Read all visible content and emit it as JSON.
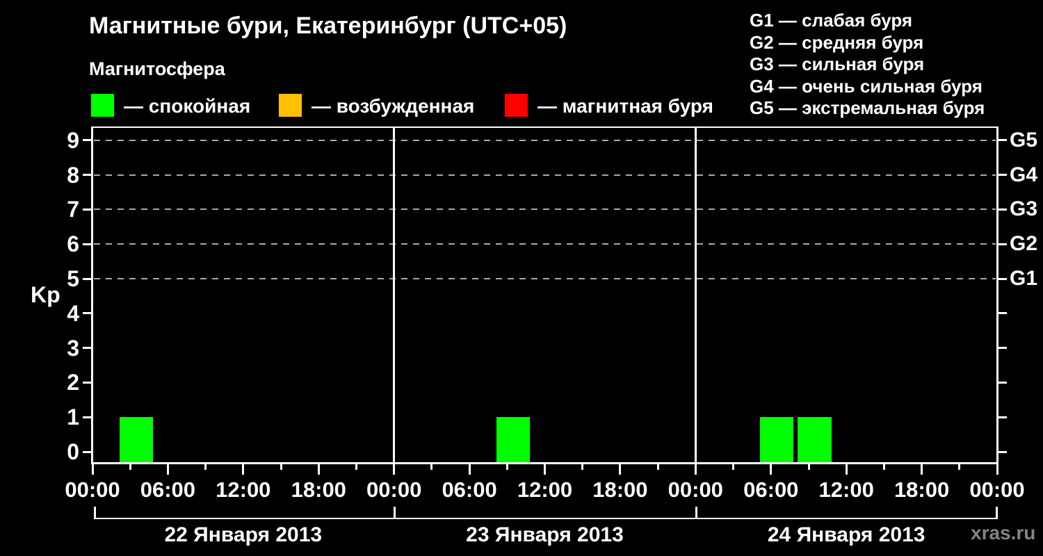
{
  "title": "Магнитные бури, Екатеринбург (UTC+05)",
  "subtitle": "Магнитосфера",
  "condition_legend": {
    "items": [
      {
        "key": "calm",
        "label": "— спокойная",
        "color": "#00ff00"
      },
      {
        "key": "excited",
        "label": "— возбужденная",
        "color": "#ffc000"
      },
      {
        "key": "storm",
        "label": "— магнитная буря",
        "color": "#ff0000"
      }
    ]
  },
  "storm_legend": {
    "items": [
      {
        "code": "G1",
        "text": "G1 — слабая буря"
      },
      {
        "code": "G2",
        "text": "G2 — средняя буря"
      },
      {
        "code": "G3",
        "text": "G3 — сильная буря"
      },
      {
        "code": "G4",
        "text": "G4 — очень сильная буря"
      },
      {
        "code": "G5",
        "text": "G5 — экстремальная буря"
      }
    ]
  },
  "watermark": "xras.ru",
  "chart_data": {
    "type": "bar",
    "title": "Магнитные бури, Екатеринбург (UTC+05)",
    "ylabel": "Kp",
    "ylim": [
      0,
      9
    ],
    "y_ticks": [
      "0",
      "1",
      "2",
      "3",
      "4",
      "5",
      "6",
      "7",
      "8",
      "9"
    ],
    "grid": "horizontal dashed lines at Kp 5,6,7,8,9",
    "legend_position": "top",
    "timezone": "UTC+05",
    "right_axis_labels": [
      {
        "kp": 5,
        "label": "G1"
      },
      {
        "kp": 6,
        "label": "G2"
      },
      {
        "kp": 7,
        "label": "G3"
      },
      {
        "kp": 8,
        "label": "G4"
      },
      {
        "kp": 9,
        "label": "G5"
      }
    ],
    "x_tick_labels_per_day": [
      "00:00",
      "06:00",
      "12:00",
      "18:00"
    ],
    "x_axis_end_label": "00:00",
    "days": [
      {
        "date": "22 Января 2013",
        "bars": [
          {
            "start_hour": 2,
            "end_hour": 5,
            "kp": 1,
            "condition": "спокойная",
            "color": "#00ff00"
          }
        ]
      },
      {
        "date": "23 Января 2013",
        "bars": [
          {
            "start_hour": 8,
            "end_hour": 11,
            "kp": 1,
            "condition": "спокойная",
            "color": "#00ff00"
          }
        ]
      },
      {
        "date": "24 Января 2013",
        "bars": [
          {
            "start_hour": 5,
            "end_hour": 8,
            "kp": 1,
            "condition": "спокойная",
            "color": "#00ff00"
          },
          {
            "start_hour": 8,
            "end_hour": 11,
            "kp": 1,
            "condition": "спокойная",
            "color": "#00ff00"
          }
        ]
      }
    ]
  }
}
